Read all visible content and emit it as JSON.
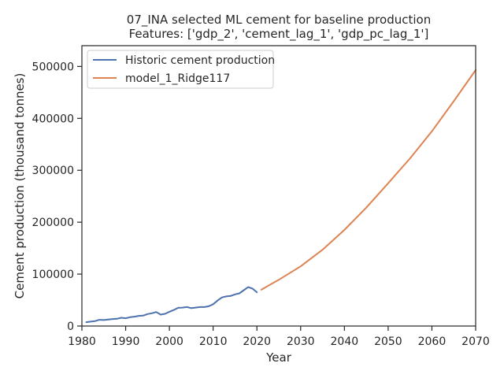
{
  "chart_data": {
    "type": "line",
    "title_line1": "07_INA selected ML cement for baseline production",
    "title_line2": "Features: ['gdp_2', 'cement_lag_1', 'gdp_pc_lag_1']",
    "xlabel": "Year",
    "ylabel": "Cement production (thousand tonnes)",
    "xlim": [
      1980,
      2070
    ],
    "ylim": [
      0,
      540000
    ],
    "xticks": [
      1980,
      1990,
      2000,
      2010,
      2020,
      2030,
      2040,
      2050,
      2060,
      2070
    ],
    "yticks": [
      0,
      100000,
      200000,
      300000,
      400000,
      500000
    ],
    "grid": false,
    "legend_position": "top-left",
    "series": [
      {
        "name": "Historic cement production",
        "color": "#4c72b0",
        "x": [
          1981,
          1982,
          1983,
          1984,
          1985,
          1986,
          1987,
          1988,
          1989,
          1990,
          1991,
          1992,
          1993,
          1994,
          1995,
          1996,
          1997,
          1998,
          1999,
          2000,
          2001,
          2002,
          2003,
          2004,
          2005,
          2006,
          2007,
          2008,
          2009,
          2010,
          2011,
          2012,
          2013,
          2014,
          2015,
          2016,
          2017,
          2018,
          2019,
          2020
        ],
        "values": [
          7500,
          8500,
          9500,
          12000,
          11500,
          12500,
          13500,
          14000,
          16000,
          15000,
          17000,
          18000,
          19500,
          20000,
          23000,
          24500,
          27000,
          22000,
          23500,
          27500,
          31000,
          35000,
          35500,
          36500,
          34500,
          35500,
          36500,
          36500,
          38000,
          42000,
          49000,
          55000,
          57000,
          58000,
          61000,
          63000,
          69000,
          75000,
          72000,
          65000
        ]
      },
      {
        "name": "model_1_Ridge117",
        "color": "#dd8452",
        "x": [
          2021,
          2025,
          2030,
          2035,
          2040,
          2045,
          2050,
          2055,
          2060,
          2065,
          2070
        ],
        "values": [
          70000,
          89000,
          115000,
          147000,
          185000,
          228000,
          275000,
          323000,
          375000,
          433000,
          493000
        ]
      }
    ]
  }
}
